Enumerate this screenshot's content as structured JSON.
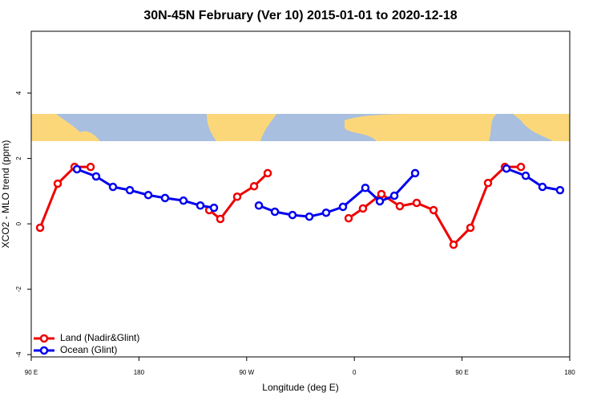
{
  "chart_data": {
    "type": "line",
    "title": "30N-45N February (Ver 10)   2015-01-01 to 2020-12-18",
    "x_label": "Longitude (deg E)",
    "y_label": "XCO2 - MLO trend (ppm)",
    "xlim": [
      90,
      540
    ],
    "xticks": [
      {
        "value": 90,
        "label": "90 E"
      },
      180,
      {
        "value": 270,
        "label": "90 W"
      },
      {
        "value": 360,
        "label": "0"
      },
      {
        "value": 450,
        "label": "90 E"
      },
      {
        "value": 540,
        "label": "180"
      }
    ],
    "ylim": [
      -4.07,
      5.89
    ],
    "yticks": [
      -4,
      -2,
      0,
      2,
      4
    ],
    "legend": "bottom-left",
    "series": [
      {
        "name": "Land (Nadir&Glint)",
        "color": "#ee0000",
        "x": [
          97.4,
          112.1,
          126.2,
          139.6,
          null,
          238.7,
          248,
          262.1,
          276.2,
          287.6,
          null,
          355.2,
          367.2,
          382.6,
          398,
          412.1,
          426.2,
          442.9,
          457,
          471.7,
          485.8,
          499.2
        ],
        "values": [
          -0.12,
          1.23,
          1.74,
          1.74,
          null,
          0.42,
          0.15,
          0.83,
          1.15,
          1.55,
          null,
          0.17,
          0.47,
          0.91,
          0.54,
          0.64,
          0.42,
          -0.64,
          -0.12,
          1.25,
          1.74,
          1.74
        ]
      },
      {
        "name": "Ocean (Glint)",
        "color": "#0000ee",
        "x": [
          128.2,
          144.2,
          158.3,
          172.4,
          187.8,
          201.8,
          217.2,
          231.3,
          242.7,
          null,
          280.2,
          293.6,
          308.3,
          322.4,
          336.4,
          350.5,
          369.2,
          381.3,
          393.4,
          410.8,
          null,
          487.1,
          503.2,
          517.2,
          531.9
        ],
        "values": [
          1.67,
          1.45,
          1.13,
          1.03,
          0.88,
          0.79,
          0.71,
          0.56,
          0.49,
          null,
          0.56,
          0.37,
          0.27,
          0.22,
          0.34,
          0.52,
          1.1,
          0.69,
          0.86,
          1.55,
          null,
          1.69,
          1.47,
          1.13,
          1.03
        ]
      }
    ]
  }
}
